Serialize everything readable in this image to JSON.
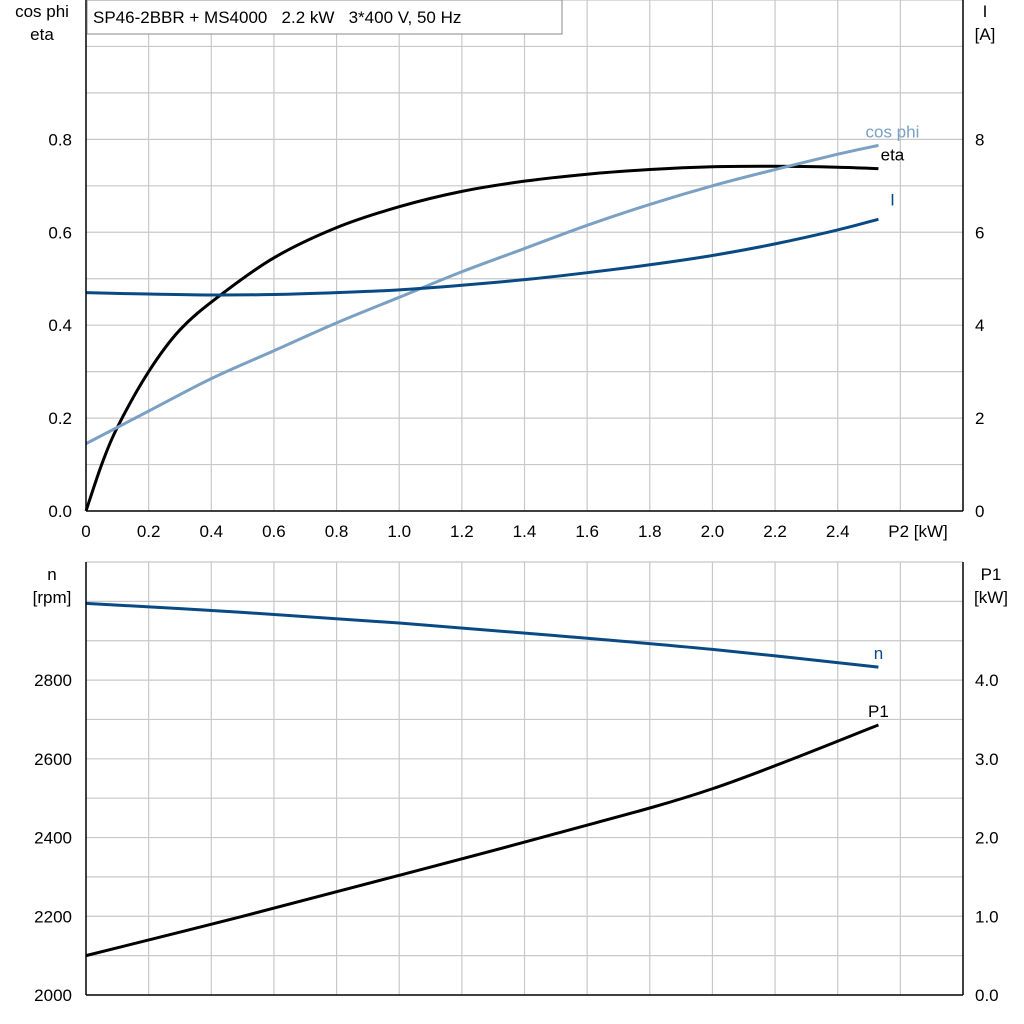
{
  "chart_data": [
    {
      "type": "line",
      "title": "SP46-2BBR + MS4000   2.2 kW   3*400 V, 50 Hz",
      "xlabel": "P2 [kW]",
      "ylabel": [
        "cos phi",
        "eta"
      ],
      "ylabel_right": [
        "I",
        "[A]"
      ],
      "xlim": [
        0,
        2.8
      ],
      "ylim": [
        0,
        1.1
      ],
      "ylim_right": [
        0,
        11
      ],
      "grid": true,
      "x_ticks": [
        "0",
        "0.2",
        "0.4",
        "0.6",
        "0.8",
        "1.0",
        "1.2",
        "1.4",
        "1.6",
        "1.8",
        "2.0",
        "2.2",
        "2.4"
      ],
      "y_ticks": [
        "0.0",
        "0.2",
        "0.4",
        "0.6",
        "0.8"
      ],
      "y_ticks_right": [
        "0",
        "2",
        "4",
        "6",
        "8"
      ],
      "series": [
        {
          "name": "eta",
          "axis": "left",
          "color": "#000000",
          "x": [
            0,
            0.05,
            0.1,
            0.2,
            0.3,
            0.42,
            0.6,
            0.8,
            1.0,
            1.2,
            1.4,
            1.6,
            1.8,
            2.0,
            2.2,
            2.4,
            2.53
          ],
          "y": [
            0,
            0.1,
            0.18,
            0.3,
            0.39,
            0.46,
            0.545,
            0.61,
            0.655,
            0.688,
            0.71,
            0.725,
            0.735,
            0.741,
            0.742,
            0.74,
            0.737
          ]
        },
        {
          "name": "cos phi",
          "axis": "left",
          "color": "#7aa0c4",
          "x": [
            0,
            0.2,
            0.4,
            0.6,
            0.8,
            1.0,
            1.2,
            1.4,
            1.6,
            1.8,
            2.0,
            2.2,
            2.4,
            2.53
          ],
          "y": [
            0.145,
            0.215,
            0.285,
            0.345,
            0.405,
            0.46,
            0.515,
            0.565,
            0.615,
            0.66,
            0.7,
            0.735,
            0.768,
            0.787
          ]
        },
        {
          "name": "I",
          "axis": "right",
          "color": "#0a4a84",
          "x": [
            0,
            0.2,
            0.4,
            0.6,
            0.8,
            1.0,
            1.2,
            1.4,
            1.6,
            1.8,
            2.0,
            2.2,
            2.4,
            2.53
          ],
          "y": [
            4.7,
            4.67,
            4.65,
            4.66,
            4.7,
            4.76,
            4.86,
            4.98,
            5.13,
            5.3,
            5.5,
            5.75,
            6.05,
            6.28
          ]
        }
      ]
    },
    {
      "type": "line",
      "xlim": [
        0,
        2.8
      ],
      "ylabel": [
        "n",
        "[rpm]"
      ],
      "ylabel_right": [
        "P1",
        "[kW]"
      ],
      "ylim": [
        2000,
        3100
      ],
      "ylim_right": [
        0,
        5.5
      ],
      "grid": true,
      "y_ticks": [
        "2000",
        "2200",
        "2400",
        "2600",
        "2800"
      ],
      "y_ticks_right": [
        "0.0",
        "1.0",
        "2.0",
        "3.0",
        "4.0"
      ],
      "series": [
        {
          "name": "n",
          "axis": "left",
          "color": "#0a4a84",
          "x": [
            0,
            0.5,
            1.0,
            1.5,
            2.0,
            2.53
          ],
          "y": [
            2995,
            2972,
            2945,
            2913,
            2878,
            2833
          ]
        },
        {
          "name": "P1",
          "axis": "right",
          "color": "#000000",
          "x": [
            0,
            0.5,
            1.0,
            1.5,
            2.0,
            2.53
          ],
          "y": [
            0.5,
            1.0,
            1.52,
            2.05,
            2.62,
            3.43
          ]
        }
      ]
    }
  ]
}
